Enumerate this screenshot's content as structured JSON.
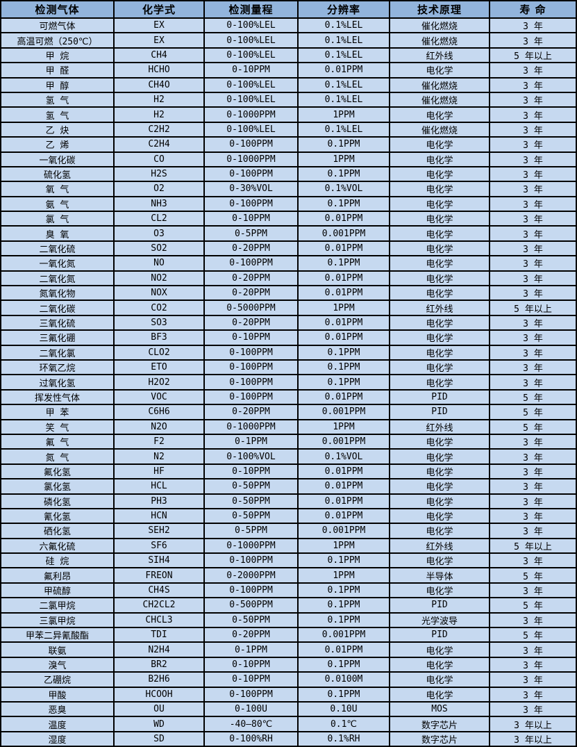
{
  "table": {
    "headers": [
      "检测气体",
      "化学式",
      "检测量程",
      "分辨率",
      "技术原理",
      "寿 命"
    ],
    "column_keys": [
      "gas-name",
      "formula",
      "range",
      "resolution",
      "principle",
      "lifespan"
    ],
    "rows": [
      [
        "可燃气体",
        "EX",
        "0-100%LEL",
        "0.1%LEL",
        "催化燃烧",
        "3 年"
      ],
      [
        "高温可燃（250℃）",
        "EX",
        "0-100%LEL",
        "0.1%LEL",
        "催化燃烧",
        "3 年"
      ],
      [
        "甲 烷",
        "CH4",
        "0-100%LEL",
        "0.1%LEL",
        "红外线",
        "5 年以上"
      ],
      [
        "甲 醛",
        "HCHO",
        "0-10PPM",
        "0.01PPM",
        "电化学",
        "3 年"
      ],
      [
        "甲 醇",
        "CH4O",
        "0-100%LEL",
        "0.1%LEL",
        "催化燃烧",
        "3 年"
      ],
      [
        "氢 气",
        "H2",
        "0-100%LEL",
        "0.1%LEL",
        "催化燃烧",
        "3 年"
      ],
      [
        "氢 气",
        "H2",
        "0-1000PPM",
        "1PPM",
        "电化学",
        "3 年"
      ],
      [
        "乙 炔",
        "C2H2",
        "0-100%LEL",
        "0.1%LEL",
        "催化燃烧",
        "3 年"
      ],
      [
        "乙 烯",
        "C2H4",
        "0-100PPM",
        "0.1PPM",
        "电化学",
        "3 年"
      ],
      [
        "一氧化碳",
        "CO",
        "0-1000PPM",
        "1PPM",
        "电化学",
        "3 年"
      ],
      [
        "硫化氢",
        "H2S",
        "0-100PPM",
        "0.1PPM",
        "电化学",
        "3 年"
      ],
      [
        "氧 气",
        "O2",
        "0-30%VOL",
        "0.1%VOL",
        "电化学",
        "3 年"
      ],
      [
        "氨 气",
        "NH3",
        "0-100PPM",
        "0.1PPM",
        "电化学",
        "3 年"
      ],
      [
        "氯 气",
        "CL2",
        "0-10PPM",
        "0.01PPM",
        "电化学",
        "3 年"
      ],
      [
        "臭 氧",
        "O3",
        "0-5PPM",
        "0.001PPM",
        "电化学",
        "3 年"
      ],
      [
        "二氧化硫",
        "SO2",
        "0-20PPM",
        "0.01PPM",
        "电化学",
        "3 年"
      ],
      [
        "一氧化氮",
        "NO",
        "0-100PPM",
        "0.1PPM",
        "电化学",
        "3 年"
      ],
      [
        "二氧化氮",
        "NO2",
        "0-20PPM",
        "0.01PPM",
        "电化学",
        "3 年"
      ],
      [
        "氮氧化物",
        "NOX",
        "0-20PPM",
        "0.01PPM",
        "电化学",
        "3 年"
      ],
      [
        "二氧化碳",
        "CO2",
        "0-5000PPM",
        "1PPM",
        "红外线",
        "5 年以上"
      ],
      [
        "三氧化硫",
        "SO3",
        "0-20PPM",
        "0.01PPM",
        "电化学",
        "3 年"
      ],
      [
        "三氟化硼",
        "BF3",
        "0-10PPM",
        "0.01PPM",
        "电化学",
        "3 年"
      ],
      [
        "二氧化氯",
        "CLO2",
        "0-100PPM",
        "0.1PPM",
        "电化学",
        "3 年"
      ],
      [
        "环氧乙烷",
        "ETO",
        "0-100PPM",
        "0.1PPM",
        "电化学",
        "3 年"
      ],
      [
        "过氧化氢",
        "H2O2",
        "0-100PPM",
        "0.1PPM",
        "电化学",
        "3 年"
      ],
      [
        "挥发性气体",
        "VOC",
        "0-100PPM",
        "0.01PPM",
        "PID",
        "5 年"
      ],
      [
        "甲 苯",
        "C6H6",
        "0-20PPM",
        "0.001PPM",
        "PID",
        "5 年"
      ],
      [
        "笑 气",
        "N2O",
        "0-1000PPM",
        "1PPM",
        "红外线",
        "5 年"
      ],
      [
        "氟 气",
        "F2",
        "0-1PPM",
        "0.001PPM",
        "电化学",
        "3 年"
      ],
      [
        "氮 气",
        "N2",
        "0-100%VOL",
        "0.1%VOL",
        "电化学",
        "3 年"
      ],
      [
        "氟化氢",
        "HF",
        "0-10PPM",
        "0.01PPM",
        "电化学",
        "3 年"
      ],
      [
        "氯化氢",
        "HCL",
        "0-50PPM",
        "0.01PPM",
        "电化学",
        "3 年"
      ],
      [
        "磷化氢",
        "PH3",
        "0-50PPM",
        "0.01PPM",
        "电化学",
        "3 年"
      ],
      [
        "氰化氢",
        "HCN",
        "0-50PPM",
        "0.01PPM",
        "电化学",
        "3 年"
      ],
      [
        "硒化氢",
        "SEH2",
        "0-5PPM",
        "0.001PPM",
        "电化学",
        "3 年"
      ],
      [
        "六氟化硫",
        "SF6",
        "0-1000PPM",
        "1PPM",
        "红外线",
        "5 年以上"
      ],
      [
        "硅 烷",
        "SIH4",
        "0-100PPM",
        "0.1PPM",
        "电化学",
        "3 年"
      ],
      [
        "氟利昂",
        "FREON",
        "0-2000PPM",
        "1PPM",
        "半导体",
        "5 年"
      ],
      [
        "甲硫醇",
        "CH4S",
        "0-100PPM",
        "0.1PPM",
        "电化学",
        "3 年"
      ],
      [
        "二氯甲烷",
        "CH2CL2",
        "0-500PPM",
        "0.1PPM",
        "PID",
        "5 年"
      ],
      [
        "三氯甲烷",
        "CHCL3",
        "0-50PPM",
        "0.1PPM",
        "光学波导",
        "3 年"
      ],
      [
        "甲苯二异氰酸酯",
        "TDI",
        "0-20PPM",
        "0.001PPM",
        "PID",
        "5 年"
      ],
      [
        "联氨",
        "N2H4",
        "0-1PPM",
        "0.01PPM",
        "电化学",
        "3 年"
      ],
      [
        "溴气",
        "BR2",
        "0-10PPM",
        "0.1PPM",
        "电化学",
        "3 年"
      ],
      [
        "乙硼烷",
        "B2H6",
        "0-10PPM",
        "0.0100M",
        "电化学",
        "3 年"
      ],
      [
        "甲酸",
        "HCOOH",
        "0-100PPM",
        "0.1PPM",
        "电化学",
        "3 年"
      ],
      [
        "恶臭",
        "OU",
        "0-100U",
        "0.10U",
        "MOS",
        "3 年"
      ],
      [
        "温度",
        "WD",
        "-40—80℃",
        "0.1℃",
        "数字芯片",
        "3 年以上"
      ],
      [
        "湿度",
        "SD",
        "0-100%RH",
        "0.1%RH",
        "数字芯片",
        "3 年以上"
      ]
    ]
  },
  "colors": {
    "header_bg": "#92b4dc",
    "row_bg": "#c6d9f0",
    "border": "#000000",
    "text": "#000000",
    "page_bg": "#ffffff"
  }
}
